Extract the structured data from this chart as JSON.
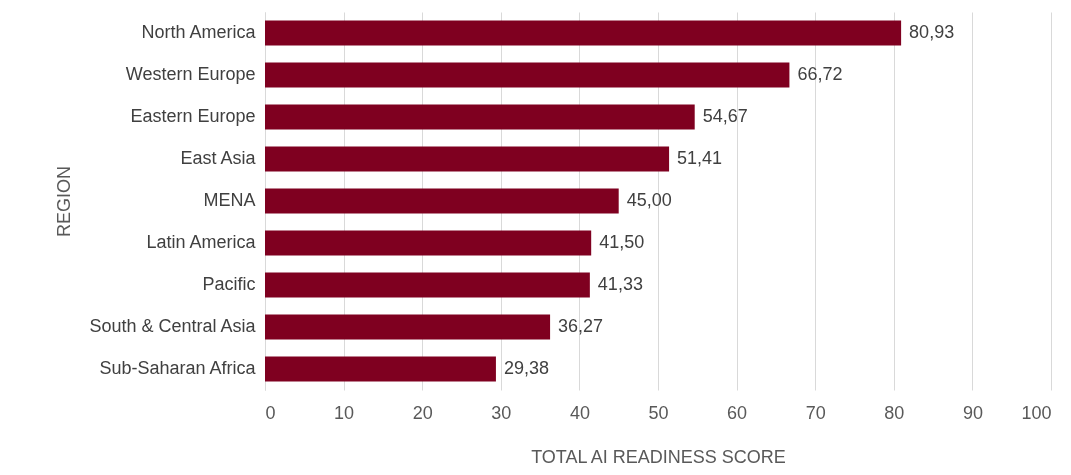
{
  "chart_data": {
    "type": "bar",
    "orientation": "horizontal",
    "xlabel": "TOTAL AI READINESS SCORE",
    "ylabel": "REGION",
    "categories": [
      "North America",
      "Western Europe",
      "Eastern Europe",
      "East Asia",
      "MENA",
      "Latin America",
      "Pacific",
      "South & Central Asia",
      "Sub-Saharan Africa"
    ],
    "values": [
      80.93,
      66.72,
      54.67,
      51.41,
      45.0,
      41.5,
      41.33,
      36.27,
      29.38
    ],
    "value_labels": [
      "80,93",
      "66,72",
      "54,67",
      "51,41",
      "45,00",
      "41,50",
      "41,33",
      "36,27",
      "29,38"
    ],
    "color": "#7f0020",
    "xlim": [
      0,
      100
    ],
    "xticks": [
      0,
      10,
      20,
      30,
      40,
      50,
      60,
      70,
      80,
      90,
      100
    ],
    "grid": "x"
  }
}
